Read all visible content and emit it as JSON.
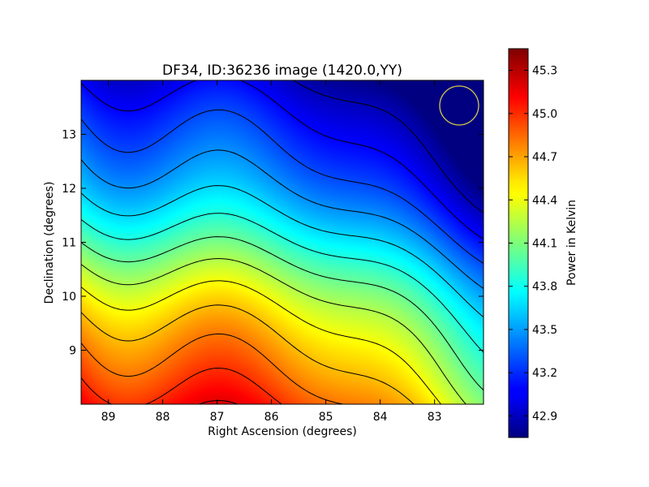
{
  "chart_data": {
    "type": "heatmap",
    "title": "DF34, ID:36236 image (1420.0,YY)",
    "xlabel": "Right Ascension (degrees)",
    "ylabel": "Declination (degrees)",
    "xlim": [
      89.5,
      82.1
    ],
    "ylim": [
      8.0,
      14.0
    ],
    "x_axis_inverted": true,
    "x_ticks": [
      "89",
      "88",
      "87",
      "86",
      "85",
      "84",
      "83"
    ],
    "y_ticks": [
      "9",
      "10",
      "11",
      "12",
      "13"
    ],
    "colorbar": {
      "label": "Power in Kelvin",
      "range": [
        42.75,
        45.45
      ],
      "ticks": [
        "42.9",
        "43.2",
        "43.5",
        "43.8",
        "44.1",
        "44.4",
        "44.7",
        "45.0",
        "45.3"
      ],
      "colormap": "jet"
    },
    "field_samples": {
      "description_points": [
        {
          "ra": 89.5,
          "dec": 8.0,
          "value": 45.4
        },
        {
          "ra": 89.5,
          "dec": 14.0,
          "value": 43.5
        },
        {
          "ra": 82.1,
          "dec": 8.0,
          "value": 44.4
        },
        {
          "ra": 82.1,
          "dec": 14.0,
          "value": 42.8
        },
        {
          "ra": 85.5,
          "dec": 11.0,
          "value": 43.85
        }
      ]
    },
    "contours": "black",
    "marker": {
      "type": "circle",
      "ra": 82.45,
      "dec": 13.55,
      "color": "#d4c84a"
    }
  }
}
